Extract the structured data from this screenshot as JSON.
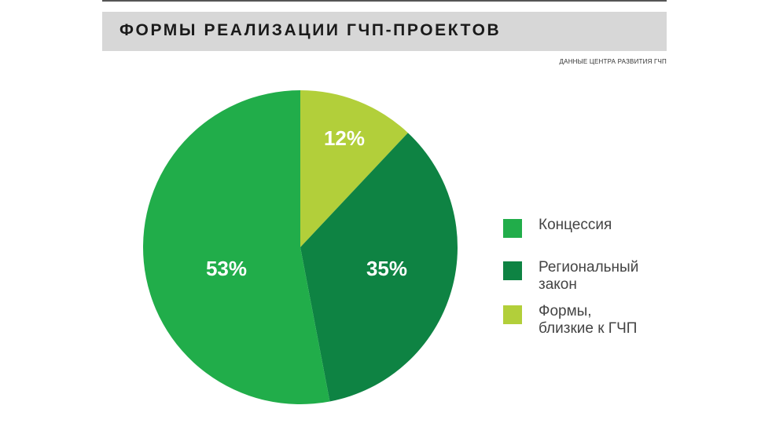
{
  "header": {
    "title": "ФОРМЫ РЕАЛИЗАЦИИ ГЧП-ПРОЕКТОВ",
    "source": "ДАННЫЕ ЦЕНТРА РАЗВИТИЯ ГЧП"
  },
  "colors": {
    "concession": "#21ad4a",
    "regional_law": "#0e8343",
    "similar_forms": "#b2cf3a",
    "title_bar": "#d7d7d7"
  },
  "chart_data": {
    "type": "pie",
    "title": "ФОРМЫ РЕАЛИЗАЦИИ ГЧП-ПРОЕКТОВ",
    "categories": [
      "Концессия",
      "Региональный закон",
      "Формы, близкие к ГЧП"
    ],
    "values": [
      53,
      35,
      12
    ],
    "value_labels": [
      "53%",
      "35%",
      "12%"
    ],
    "unit": "%",
    "legend": "right"
  },
  "legend": {
    "items": [
      {
        "label": "Концессия"
      },
      {
        "label": "Региональный\nзакон"
      },
      {
        "label": "Формы,\nблизкие к ГЧП"
      }
    ]
  }
}
